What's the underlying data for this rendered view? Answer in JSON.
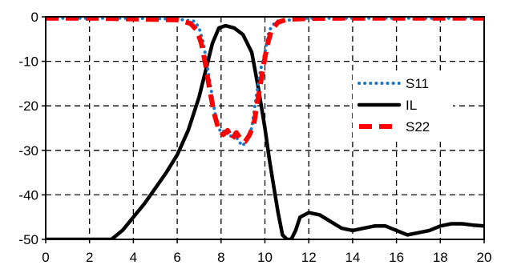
{
  "chart_data": {
    "type": "line",
    "title": "",
    "xlabel": "",
    "ylabel": "",
    "xlim": [
      0,
      20
    ],
    "ylim": [
      -50,
      0
    ],
    "xticks": [
      "0",
      "2",
      "4",
      "6",
      "8",
      "10",
      "12",
      "14",
      "16",
      "18",
      "20"
    ],
    "yticks": [
      "0",
      "-10",
      "-20",
      "-30",
      "-40",
      "-50"
    ],
    "grid": true,
    "grid_style": "dashed",
    "legend_position": "right",
    "series": [
      {
        "name": "S11",
        "color": "#1f77c4",
        "style": "dotted",
        "x": [
          0,
          2,
          4,
          6,
          6.8,
          7.0,
          7.2,
          7.4,
          7.6,
          7.8,
          8.0,
          8.2,
          8.4,
          8.6,
          8.8,
          9.0,
          9.2,
          9.4,
          9.6,
          9.8,
          10.0,
          10.2,
          10.5,
          12,
          14,
          16,
          18,
          20
        ],
        "y": [
          -0.3,
          -0.3,
          -0.3,
          -0.5,
          -1.0,
          -2.5,
          -6.0,
          -12.0,
          -18.0,
          -24.0,
          -26.0,
          -25.5,
          -27.0,
          -26.0,
          -28.0,
          -29.0,
          -27.0,
          -25.0,
          -18.0,
          -12.0,
          -8.0,
          -3.0,
          -1.0,
          -0.3,
          -0.3,
          -0.3,
          -0.3,
          -0.3
        ]
      },
      {
        "name": "IL",
        "color": "#000000",
        "style": "solid",
        "x": [
          0,
          3.0,
          3.5,
          4.0,
          4.5,
          5.0,
          5.5,
          6.0,
          6.5,
          7.0,
          7.3,
          7.6,
          7.9,
          8.2,
          8.6,
          9.0,
          9.4,
          9.7,
          10.0,
          10.2,
          10.4,
          10.6,
          10.8,
          11.0,
          11.2,
          11.4,
          11.6,
          12.0,
          12.5,
          13.0,
          13.5,
          14.0,
          14.5,
          15.0,
          15.5,
          16.0,
          16.5,
          17.0,
          17.5,
          18.0,
          18.5,
          19.0,
          19.5,
          20.0
        ],
        "y": [
          -50,
          -50,
          -48.0,
          -45.0,
          -42.0,
          -38.5,
          -35.0,
          -31.0,
          -25.5,
          -18.0,
          -12.0,
          -6.0,
          -2.5,
          -2.0,
          -2.5,
          -4.0,
          -8.0,
          -16.0,
          -25.0,
          -32.0,
          -38.0,
          -44.0,
          -49.0,
          -50,
          -50,
          -48.0,
          -45.0,
          -44.0,
          -44.5,
          -46.0,
          -47.5,
          -48.0,
          -47.5,
          -47.0,
          -47.0,
          -48.0,
          -49.0,
          -48.5,
          -48.0,
          -47.0,
          -46.5,
          -46.5,
          -46.8,
          -47.0
        ]
      },
      {
        "name": "S22",
        "color": "#ff0000",
        "style": "dashed",
        "x": [
          0,
          2,
          4,
          6,
          6.6,
          6.9,
          7.1,
          7.3,
          7.5,
          7.7,
          7.9,
          8.1,
          8.3,
          8.5,
          8.7,
          8.9,
          9.1,
          9.3,
          9.5,
          9.7,
          9.9,
          10.1,
          10.3,
          10.6,
          11,
          12,
          14,
          16,
          18,
          20
        ],
        "y": [
          -0.3,
          -0.3,
          -0.5,
          -0.7,
          -1.5,
          -3.0,
          -6.0,
          -11.0,
          -17.0,
          -22.0,
          -25.5,
          -26.5,
          -25.5,
          -27.5,
          -26.0,
          -27.5,
          -28.0,
          -26.5,
          -24.0,
          -18.0,
          -12.0,
          -6.5,
          -3.0,
          -1.2,
          -0.6,
          -0.4,
          -0.3,
          -0.3,
          -0.3,
          -0.3
        ]
      }
    ]
  }
}
